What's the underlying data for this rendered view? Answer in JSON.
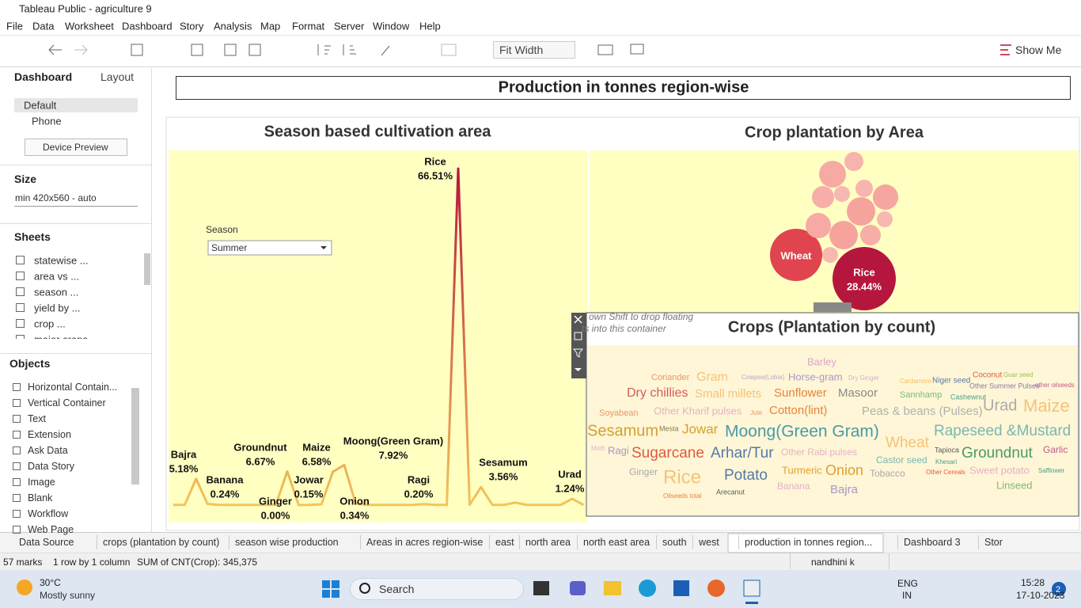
{
  "window": {
    "title": "Tableau Public - agriculture 9"
  },
  "menu": [
    "File",
    "Data",
    "Worksheet",
    "Dashboard",
    "Story",
    "Analysis",
    "Map",
    "Format",
    "Server",
    "Window",
    "Help"
  ],
  "toolbar": {
    "fit": "Fit Width",
    "show_me": "Show Me"
  },
  "left_panel": {
    "tabs": [
      "Dashboard",
      "Layout"
    ],
    "devices": [
      "Default",
      "Phone"
    ],
    "device_preview": "Device Preview",
    "size_heading": "Size",
    "size_value": "min 420x560 - auto",
    "sheets_heading": "Sheets",
    "sheets": [
      "statewise ...",
      "area vs ...",
      "season ...",
      "yield by ...",
      "crop ...",
      "major crops"
    ],
    "objects_heading": "Objects",
    "objects": [
      "Horizontal Contain...",
      "Vertical Container",
      "Text",
      "Extension",
      "Ask Data",
      "Data Story",
      "Image",
      "Blank",
      "Workflow",
      "Web Page"
    ]
  },
  "dashboard": {
    "title": "Production in tonnes region-wise",
    "season_label": "Season",
    "season_value": "Summer",
    "float_hint": [
      "own Shift to drop floating",
      "ts into this container"
    ]
  },
  "chart_data": [
    {
      "type": "line",
      "title": "Season based cultivation area",
      "categories": [
        null,
        null,
        "Bajra",
        "Banana",
        null,
        null,
        null,
        null,
        null,
        null,
        "Groundnut",
        "Ginger",
        null,
        "Jowar",
        "Maize",
        "Moong(Green Gram)",
        "Onion",
        null,
        null,
        null,
        null,
        null,
        "Ragi",
        null,
        null,
        "Rice",
        null,
        "Sesamum",
        null,
        null,
        null,
        null,
        null,
        null,
        null,
        "Urad",
        null
      ],
      "values": [
        0.04,
        0.04,
        5.18,
        0.24,
        0.04,
        0.04,
        0.04,
        0.04,
        0.04,
        0.04,
        6.67,
        0,
        0.04,
        0.15,
        6.58,
        7.92,
        0.34,
        0.04,
        0.04,
        0.04,
        0.04,
        0.04,
        0.2,
        0.04,
        0.04,
        66.51,
        0.04,
        3.56,
        0.04,
        0.04,
        0.5,
        0.04,
        0.04,
        0.04,
        0.04,
        1.24,
        0.04
      ],
      "value_labels": [
        null,
        null,
        "5.18%",
        "0.24%",
        null,
        null,
        null,
        null,
        null,
        null,
        "6.67%",
        "0.00%",
        null,
        "0.15%",
        "6.58%",
        "7.92%",
        "0.34%",
        null,
        null,
        null,
        null,
        null,
        "0.20%",
        null,
        null,
        "66.51%",
        null,
        "3.56%",
        null,
        null,
        null,
        null,
        null,
        null,
        null,
        "1.24%",
        null
      ],
      "color": "#f3c45a",
      "peak_color": "#b5163e"
    },
    {
      "type": "bubble",
      "title": "Crop plantation by Area",
      "categories": [
        "Rice",
        "Wheat",
        null,
        null,
        null,
        null,
        null,
        null,
        null,
        null,
        null,
        null,
        null,
        null
      ],
      "values": [
        28.44,
        19.4,
        5.1,
        2.56,
        5.76,
        5.76,
        4.55,
        3.48,
        1.78,
        2.15,
        4.55,
        1.78,
        3.0,
        1.78
      ],
      "value_labels": [
        "28.44%",
        null,
        null,
        null,
        null,
        null,
        null,
        null,
        null,
        null,
        null,
        null,
        null,
        null
      ],
      "colors": [
        "#b5163e",
        "#e0454f",
        "#f7a9a4",
        "#f7b4ae",
        "#f6a39e",
        "#f6a39e",
        "#f7a9a4",
        "#f7aea8",
        "#f8b8b2",
        "#f8b4ae",
        "#f6a5a0",
        "#f8b8b2",
        "#f7aea8",
        "#f8b8b2"
      ]
    },
    {
      "type": "wordcloud",
      "title": "Crops (Plantation by count)",
      "categories": [
        "Barley",
        "Coriander",
        "Gram",
        "Cowpea(Lobia)",
        "Horse-gram",
        "Dry Ginger",
        "Cardamom",
        "Niger seed",
        "Coconut",
        "Guar seed",
        "Other Summer Pulses",
        "other oilseeds",
        "Dry chillies",
        "Small millets",
        "Sunflower",
        "Masoor",
        "Sannhamp",
        "Cashewnut",
        "Soyabean",
        "Other Kharif pulses",
        "Jute",
        "Cotton(lint)",
        "Peas & beans (Pulses)",
        "Urad",
        "Maize",
        "Sesamum",
        "Mesta",
        "Jowar",
        "Moong(Green Gram)",
        "Wheat",
        "Rapeseed &Mustard",
        "Moth",
        "Ragi",
        "Sugarcane",
        "Arhar/Tur",
        "Other Rabi pulses",
        "Castor seed",
        "Tapioca",
        "Khesari",
        "Groundnut",
        "Garlic",
        "Ginger",
        "Rice",
        "Potato",
        "Turmeric",
        "Onion",
        "Tobacco",
        "Other Cereals",
        "Sweet potato",
        "Safflower",
        "Banana",
        "Bajra",
        "Linseed",
        "Oilseeds total",
        "Arecanut"
      ],
      "values": [
        6500,
        5500,
        8000,
        4000,
        6500,
        4000,
        4000,
        5000,
        5000,
        4000,
        4500,
        4000,
        8000,
        7500,
        7500,
        7500,
        5500,
        4500,
        5500,
        6500,
        4000,
        7500,
        7500,
        10000,
        11000,
        10000,
        4500,
        8500,
        10500,
        9500,
        9500,
        4000,
        6500,
        9500,
        9500,
        6000,
        6000,
        4500,
        4000,
        9500,
        6000,
        6000,
        12000,
        9500,
        6500,
        9000,
        6000,
        4000,
        6500,
        4000,
        6000,
        7500,
        6500,
        4000,
        4500
      ],
      "colors": [
        "#d9a6c9",
        "#e8956c",
        "#f5c27a",
        "#b8a9c9",
        "#a599c9",
        "#d4b0c8",
        "#f0c060",
        "#5578a8",
        "#e05a40",
        "#9bbe50",
        "#8a7aa8",
        "#c05a8a",
        "#d45a60",
        "#f5c27a",
        "#e8823a",
        "#8a8a8a",
        "#7fb87a",
        "#4aa08a",
        "#e8956c",
        "#e6b0c8",
        "#e8956c",
        "#e8823a",
        "#b0b0b0",
        "#aaaaaa",
        "#f5c27a",
        "#d4a030",
        "#8a7a50",
        "#d4a030",
        "#4a9aa8",
        "#f5c27a",
        "#7ab8b0",
        "#e6b0c8",
        "#a599c9",
        "#e05a40",
        "#5578a8",
        "#e6b0c8",
        "#7ab8b0",
        "#5a5a5a",
        "#4aa08a",
        "#4a9a6a",
        "#c05a8a",
        "#aaaaaa",
        "#f5c27a",
        "#5578a8",
        "#e0a030",
        "#e0a030",
        "#aaaaaa",
        "#e05a40",
        "#e6b0c8",
        "#4aa08a",
        "#e6b0c8",
        "#a599c9",
        "#7fb87a",
        "#e8823a",
        "#5a5a5a"
      ]
    }
  ],
  "tabs": [
    "Data Source",
    "crops (plantation by count)",
    "season wise production",
    "Areas in acres region-wise",
    "east",
    "north area",
    "north east area",
    "south",
    "west",
    "production in tonnes region...",
    "Dashboard 3",
    "Stor"
  ],
  "status": {
    "marks": "57 marks",
    "rows": "1 row by 1 column",
    "sum": "SUM of CNT(Crop): 345,375",
    "user": "nandhini k"
  },
  "taskbar": {
    "temp": "30°C",
    "weather": "Mostly sunny",
    "search": "Search",
    "lang": [
      "ENG",
      "IN"
    ],
    "time": "15:28",
    "date": "17-10-2023",
    "badge": "2"
  }
}
